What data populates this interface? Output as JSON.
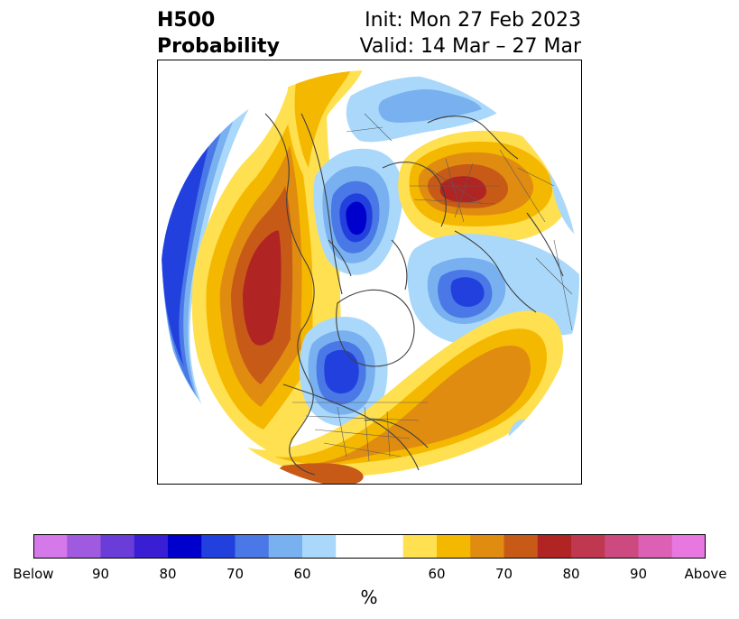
{
  "header": {
    "title_line1": "H500",
    "title_line2": "Probability",
    "init_text": "Init: Mon 27 Feb 2023",
    "valid_text": "Valid: 14 Mar – 27 Mar"
  },
  "colorbar": {
    "label": "%",
    "ticks": [
      "Below",
      "90",
      "80",
      "70",
      "60",
      "60",
      "70",
      "80",
      "90",
      "Above"
    ],
    "colors": [
      "#d478ea",
      "#a05ae0",
      "#6a3cd8",
      "#3a1ed4",
      "#0000cc",
      "#2240dd",
      "#4a78e6",
      "#78b0f0",
      "#aad8fa",
      "#ffffff",
      "#ffe050",
      "#f5b800",
      "#e08c10",
      "#c85a18",
      "#b02424",
      "#c03850",
      "#cc4a80",
      "#dc60b4",
      "#e878e0"
    ]
  }
}
